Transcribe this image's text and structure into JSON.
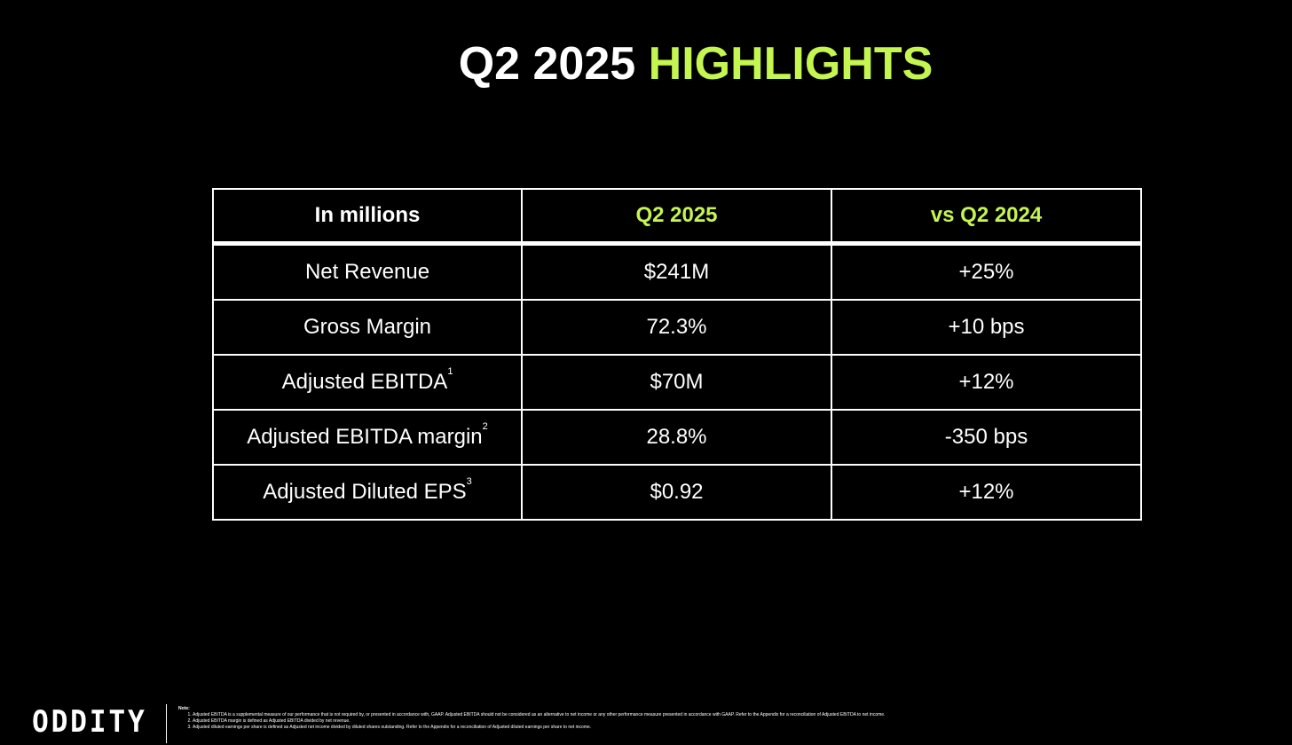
{
  "slide": {
    "title_part1": "Q2 2025",
    "title_part2": "HIGHLIGHTS"
  },
  "colors": {
    "accent": "#c4f550",
    "background": "#000000",
    "text": "#ffffff"
  },
  "table": {
    "headers": [
      "In millions",
      "Q2 2025",
      "vs Q2 2024"
    ],
    "rows": [
      {
        "metric": "Net Revenue",
        "sup": "",
        "q2_2025": "$241M",
        "vs_q2_2024": "+25%"
      },
      {
        "metric": "Gross Margin",
        "sup": "",
        "q2_2025": "72.3%",
        "vs_q2_2024": "+10 bps"
      },
      {
        "metric": "Adjusted EBITDA",
        "sup": "1",
        "q2_2025": "$70M",
        "vs_q2_2024": "+12%"
      },
      {
        "metric": "Adjusted EBITDA margin",
        "sup": "2",
        "q2_2025": "28.8%",
        "vs_q2_2024": "-350 bps"
      },
      {
        "metric": "Adjusted Diluted EPS",
        "sup": "3",
        "q2_2025": "$0.92",
        "vs_q2_2024": "+12%"
      }
    ]
  },
  "footer": {
    "logo_text": "ODDITY",
    "note_title": "Note:",
    "notes": [
      "Adjusted EBITDA is a supplemental measure of our performance that is not required by, or presented in accordance with, GAAP. Adjusted EBITDA should not be considered as an alternative to net income or any other performance measure presented in accordance with GAAP. Refer to the Appendix for a reconciliation of Adjusted EBITDA to net income.",
      "Adjusted EBITDA margin is defined as Adjusted EBITDA divided by net revenue.",
      "Adjusted diluted earnings per share is defined as Adjusted net income divided by diluted shares outstanding. Refer to the Appendix for a reconciliation of Adjusted diluted earnings per share to net income."
    ]
  }
}
